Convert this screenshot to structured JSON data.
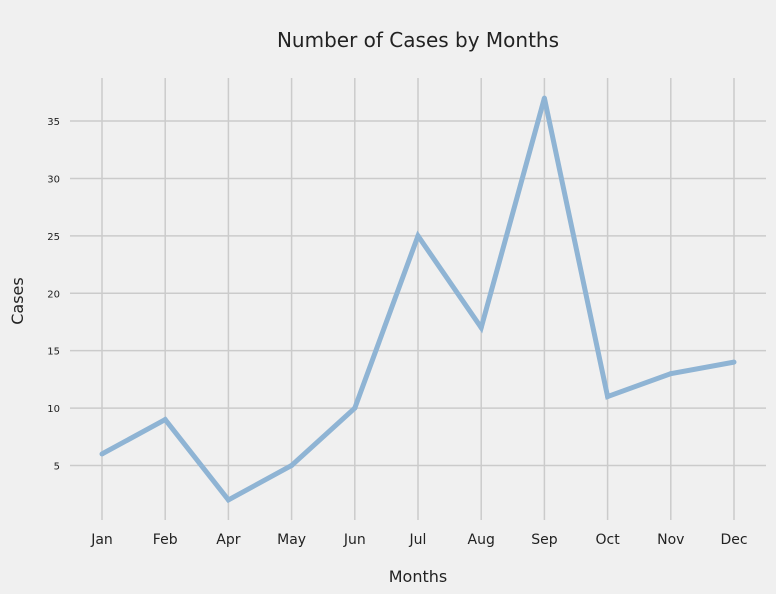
{
  "chart_data": {
    "type": "line",
    "title": "Number of Cases by Months",
    "xlabel": "Months",
    "ylabel": "Cases",
    "categories": [
      "Jan",
      "Feb",
      "Apr",
      "May",
      "Jun",
      "Jul",
      "Aug",
      "Sep",
      "Oct",
      "Nov",
      "Dec"
    ],
    "series": [
      {
        "values": [
          6,
          9,
          2,
          5,
          10,
          25,
          17,
          37,
          11,
          13,
          14
        ]
      }
    ],
    "yticks": [
      5,
      10,
      15,
      20,
      25,
      30,
      35
    ],
    "ylim": [
      0.25,
      38.75
    ],
    "grid": true,
    "legend": "none",
    "colors": {
      "background": "#f0f0f0",
      "grid": "#cbcbcb",
      "line": "#8fb4d4",
      "text": "#222222"
    }
  }
}
